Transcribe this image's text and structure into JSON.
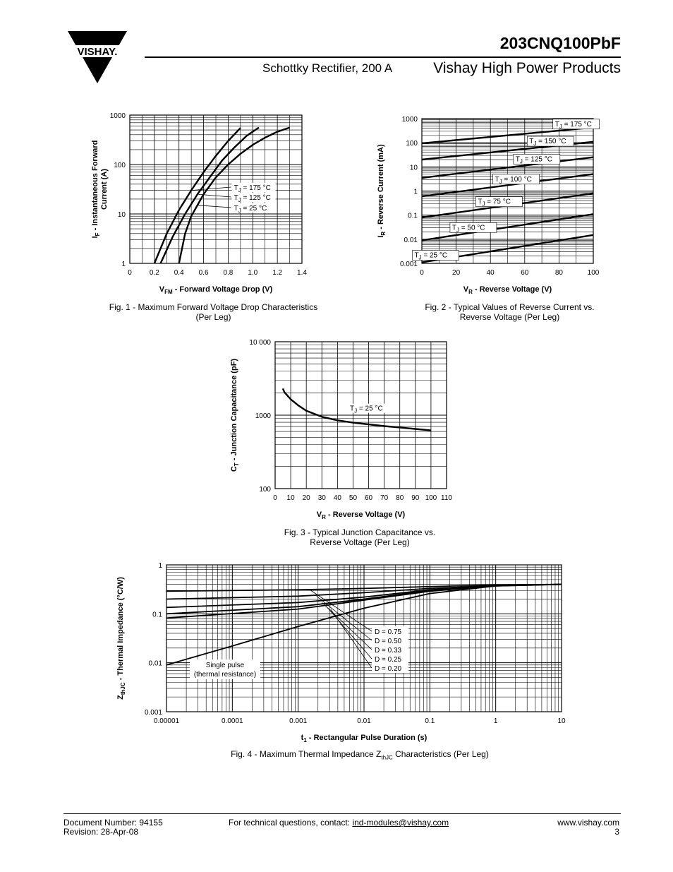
{
  "header": {
    "logo_text": "VISHAY.",
    "part_number": "203CNQ100PbF",
    "subtitle": "Schottky Rectifier, 200 A",
    "brand": "Vishay High Power Products"
  },
  "chart_data": [
    {
      "id": "fig1",
      "type": "line",
      "caption_line1": "Fig. 1 - Maximum Forward Voltage Drop Characteristics",
      "caption_line2": "(Per Leg)",
      "xlabel_main": "V",
      "xlabel_sub": "FM",
      "xlabel_rest": " - Forward Voltage Drop (V)",
      "ylabel_main": "I",
      "ylabel_sub": "F",
      "ylabel_rest": " - Instantaneous Forward",
      "ylabel_line2": "Current (A)",
      "x_ticks": [
        "0",
        "0.2",
        "0.4",
        "0.6",
        "0.8",
        "1.0",
        "1.2",
        "1.4"
      ],
      "y_ticks": [
        "1",
        "10",
        "100",
        "1000"
      ],
      "xlim": [
        0,
        1.4
      ],
      "ylim": [
        1,
        1000
      ],
      "yscale": "log",
      "grid": true,
      "series": [
        {
          "name": "T J = 175 °C",
          "label_main": "T",
          "label_sub": "J",
          "label_rest": " = 175 °C",
          "x": [
            0.2,
            0.3,
            0.4,
            0.5,
            0.6,
            0.7,
            0.8,
            0.9
          ],
          "y": [
            1,
            4,
            12,
            30,
            70,
            150,
            300,
            550
          ]
        },
        {
          "name": "T J = 125 °C",
          "label_main": "T",
          "label_sub": "J",
          "label_rest": " = 125 °C",
          "x": [
            0.25,
            0.35,
            0.45,
            0.55,
            0.65,
            0.75,
            0.85,
            0.95,
            1.05
          ],
          "y": [
            1,
            3.5,
            10,
            25,
            55,
            120,
            220,
            380,
            560
          ]
        },
        {
          "name": "T J = 25 °C",
          "label_main": "T",
          "label_sub": "J",
          "label_rest": " = 25 °C",
          "x": [
            0.4,
            0.45,
            0.5,
            0.6,
            0.7,
            0.8,
            0.9,
            1.0,
            1.1,
            1.2,
            1.3
          ],
          "y": [
            1,
            4,
            9,
            25,
            55,
            100,
            165,
            250,
            350,
            460,
            560
          ]
        }
      ]
    },
    {
      "id": "fig2",
      "type": "line",
      "caption_line1": "Fig. 2 - Typical Values of Reverse Current vs.",
      "caption_line2": "Reverse Voltage (Per Leg)",
      "xlabel_main": "V",
      "xlabel_sub": "R",
      "xlabel_rest": " - Reverse Voltage (V)",
      "ylabel_main": "I",
      "ylabel_sub": "R",
      "ylabel_rest": " - Reverse Current (mA)",
      "x_ticks": [
        "0",
        "20",
        "40",
        "60",
        "80",
        "100"
      ],
      "y_ticks": [
        "0.001",
        "0.01",
        "0.1",
        "1",
        "10",
        "100",
        "1000"
      ],
      "xlim": [
        0,
        100
      ],
      "ylim": [
        0.001,
        1000
      ],
      "yscale": "log",
      "grid": true,
      "series": [
        {
          "name": "T J = 175 °C",
          "label_main": "T",
          "label_sub": "J",
          "label_rest": " = 175 °C",
          "x": [
            0,
            100
          ],
          "y": [
            95,
            430
          ]
        },
        {
          "name": "T J = 150 °C",
          "label_main": "T",
          "label_sub": "J",
          "label_rest": " = 150 °C",
          "x": [
            0,
            100
          ],
          "y": [
            20,
            110
          ]
        },
        {
          "name": "T J = 125 °C",
          "label_main": "T",
          "label_sub": "J",
          "label_rest": " = 125 °C",
          "x": [
            0,
            100
          ],
          "y": [
            3.5,
            25
          ]
        },
        {
          "name": "T J = 100 °C",
          "label_main": "T",
          "label_sub": "J",
          "label_rest": " = 100 °C",
          "x": [
            0,
            100
          ],
          "y": [
            0.6,
            5
          ]
        },
        {
          "name": "T J = 75 °C",
          "label_main": "T",
          "label_sub": "J",
          "label_rest": " = 75 °C",
          "x": [
            0,
            100
          ],
          "y": [
            0.08,
            0.8
          ]
        },
        {
          "name": "T J = 50 °C",
          "label_main": "T",
          "label_sub": "J",
          "label_rest": " = 50 °C",
          "x": [
            0,
            100
          ],
          "y": [
            0.009,
            0.11
          ]
        },
        {
          "name": "T J = 25 °C",
          "label_main": "T",
          "label_sub": "J",
          "label_rest": " = 25 °C",
          "x": [
            0,
            100
          ],
          "y": [
            0.0011,
            0.015
          ]
        }
      ]
    },
    {
      "id": "fig3",
      "type": "line",
      "caption_line1": "Fig. 3 - Typical Junction Capacitance vs.",
      "caption_line2": "Reverse Voltage (Per Leg)",
      "xlabel_main": "V",
      "xlabel_sub": "R",
      "xlabel_rest": " - Reverse Voltage (V)",
      "ylabel_main": "C",
      "ylabel_sub": "T",
      "ylabel_rest": " - Junction Capacitance (pF)",
      "x_ticks": [
        "0",
        "10",
        "20",
        "30",
        "40",
        "50",
        "60",
        "70",
        "80",
        "90",
        "100",
        "110"
      ],
      "y_ticks": [
        "100",
        "1000",
        "10 000"
      ],
      "xlim": [
        0,
        110
      ],
      "ylim": [
        100,
        10000
      ],
      "yscale": "log",
      "grid": true,
      "series": [
        {
          "name": "T J = 25 °C",
          "label_main": "T",
          "label_sub": "J",
          "label_rest": " = 25 °C",
          "x": [
            5,
            6,
            10,
            15,
            20,
            30,
            40,
            50,
            60,
            70,
            80,
            90,
            100
          ],
          "y": [
            2300,
            2050,
            1650,
            1350,
            1150,
            950,
            850,
            790,
            750,
            710,
            680,
            650,
            620
          ]
        }
      ]
    },
    {
      "id": "fig4",
      "type": "line",
      "caption_line1_a": "Fig. 4 - Maximum Thermal Impedance Z",
      "caption_line1_sub": "thJC",
      "caption_line1_b": " Characteristics (Per Leg)",
      "xlabel_main": "t",
      "xlabel_sub": "1",
      "xlabel_rest": " - Rectangular Pulse Duration (s)",
      "ylabel_main": "Z",
      "ylabel_sub": "thJC",
      "ylabel_rest": " - Thermal Impedance (°C/W)",
      "x_ticks": [
        "0.00001",
        "0.0001",
        "0.001",
        "0.01",
        "0.1",
        "1",
        "10"
      ],
      "y_ticks": [
        "0.001",
        "0.01",
        "0.1",
        "1"
      ],
      "xlim": [
        1e-05,
        10
      ],
      "ylim": [
        0.001,
        1
      ],
      "xscale": "log",
      "yscale": "log",
      "grid": true,
      "legend_items": [
        "D = 0.75",
        "D = 0.50",
        "D = 0.33",
        "D = 0.25",
        "D = 0.20"
      ],
      "annotation_line1": "Single pulse",
      "annotation_line2": "(thermal resistance)",
      "series": [
        {
          "name": "D = 0.75",
          "x": [
            1e-05,
            0.001,
            0.01,
            0.1,
            1,
            10
          ],
          "y": [
            0.29,
            0.31,
            0.33,
            0.36,
            0.39,
            0.4
          ]
        },
        {
          "name": "D = 0.50",
          "x": [
            1e-05,
            0.001,
            0.01,
            0.1,
            1,
            10
          ],
          "y": [
            0.2,
            0.23,
            0.27,
            0.33,
            0.38,
            0.4
          ]
        },
        {
          "name": "D = 0.33",
          "x": [
            1e-05,
            0.001,
            0.01,
            0.1,
            1,
            10
          ],
          "y": [
            0.135,
            0.17,
            0.22,
            0.31,
            0.38,
            0.4
          ]
        },
        {
          "name": "D = 0.25",
          "x": [
            1e-05,
            0.001,
            0.01,
            0.1,
            1,
            10
          ],
          "y": [
            0.1,
            0.14,
            0.2,
            0.3,
            0.38,
            0.4
          ]
        },
        {
          "name": "D = 0.20",
          "x": [
            1e-05,
            0.001,
            0.01,
            0.1,
            1,
            10
          ],
          "y": [
            0.082,
            0.125,
            0.19,
            0.29,
            0.37,
            0.4
          ]
        },
        {
          "name": "Single pulse",
          "x": [
            1e-05,
            0.0001,
            0.001,
            0.01,
            0.1,
            1,
            10
          ],
          "y": [
            0.009,
            0.022,
            0.055,
            0.13,
            0.26,
            0.37,
            0.4
          ]
        }
      ]
    }
  ],
  "footer": {
    "doc_number": "Document Number: 94155",
    "revision": "Revision: 28-Apr-08",
    "contact_prefix": "For technical questions, contact: ",
    "contact_email": "ind-modules@vishay.com",
    "website": "www.vishay.com",
    "page": "3"
  }
}
